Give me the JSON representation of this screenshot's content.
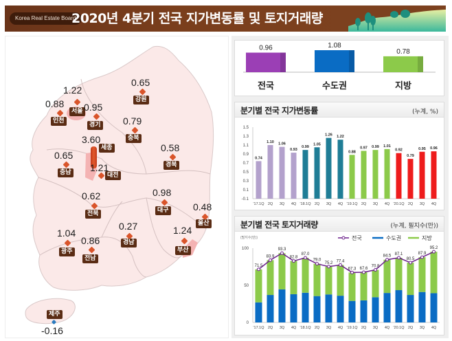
{
  "header": {
    "brand": "Korea Real Estate Board",
    "title": "2020년 4분기 전국 지가변동률 및 토지거래량"
  },
  "colors": {
    "banner": "#7a3e1c",
    "national": "#9b3fb5",
    "capital": "#0a6cc4",
    "provincial": "#8cca4a",
    "year2017": "#b3a1cc",
    "year2018": "#1f7d96",
    "year2019": "#8cca4a",
    "year2020": "#ee1c1c",
    "line": "#6a1f8a",
    "map_fill": "#fbe9e8",
    "label_bg": "#5a2c14"
  },
  "map": {
    "regions": [
      {
        "name": "서울",
        "value": "1.22"
      },
      {
        "name": "인천",
        "value": "0.88"
      },
      {
        "name": "경기",
        "value": "0.95"
      },
      {
        "name": "강원",
        "value": "0.65"
      },
      {
        "name": "충북",
        "value": "0.79"
      },
      {
        "name": "세종",
        "value": "3.60"
      },
      {
        "name": "충남",
        "value": "0.65"
      },
      {
        "name": "대전",
        "value": "1.21"
      },
      {
        "name": "경북",
        "value": "0.58"
      },
      {
        "name": "전북",
        "value": "0.62"
      },
      {
        "name": "대구",
        "value": "0.98"
      },
      {
        "name": "울산",
        "value": "0.48"
      },
      {
        "name": "광주",
        "value": "1.04"
      },
      {
        "name": "전남",
        "value": "0.86"
      },
      {
        "name": "경남",
        "value": "0.27"
      },
      {
        "name": "부산",
        "value": "1.24"
      },
      {
        "name": "제주",
        "value": "-0.16"
      }
    ]
  },
  "chart_data": [
    {
      "type": "bar",
      "title": "",
      "categories": [
        "전국",
        "수도권",
        "지방"
      ],
      "values": [
        0.96,
        1.08,
        0.78
      ],
      "value_labels": [
        "0.96",
        "1.08",
        "0.78"
      ],
      "xlabel": "",
      "ylabel": "",
      "ylim": [
        0,
        1.2
      ],
      "grid": false
    },
    {
      "type": "bar",
      "title": "분기별 전국 지가변동률",
      "unit": "(누계, %)",
      "categories": [
        "'17.1Q",
        "2Q",
        "3Q",
        "4Q",
        "'18.1Q",
        "2Q",
        "3Q",
        "4Q",
        "'19.1Q",
        "2Q",
        "3Q",
        "4Q",
        "'20.1Q",
        "2Q",
        "3Q",
        "4Q"
      ],
      "values": [
        0.74,
        1.1,
        1.06,
        0.93,
        0.99,
        1.05,
        1.26,
        1.22,
        0.88,
        0.97,
        0.99,
        1.01,
        0.92,
        0.79,
        0.95,
        0.96
      ],
      "value_labels": [
        "0.74",
        "1.10",
        "1.06",
        "0.93",
        "0.99",
        "1.05",
        "1.26",
        "1.22",
        "0.88",
        "0.97",
        "0.99",
        "1.01",
        "0.92",
        "0.79",
        "0.95",
        "0.96"
      ],
      "year_groups": [
        "2017",
        "2017",
        "2017",
        "2017",
        "2018",
        "2018",
        "2018",
        "2018",
        "2019",
        "2019",
        "2019",
        "2019",
        "2020",
        "2020",
        "2020",
        "2020"
      ],
      "yticks": [
        "1.5",
        "1.3",
        "1.1",
        "0.9",
        "0.7",
        "0.5",
        "0.3",
        "0.1",
        "-0.1"
      ],
      "ylim": [
        -0.1,
        1.5
      ],
      "xlabel": "",
      "ylabel": "",
      "grid": false
    },
    {
      "type": "bar",
      "stacked": true,
      "title": "분기별 전국 토지거래량",
      "unit": "(누계, 필지수(만))",
      "ylabel": "(필지수(만))",
      "xlabel": "",
      "categories": [
        "'17.1Q",
        "2Q",
        "3Q",
        "4Q",
        "'18.1Q",
        "2Q",
        "3Q",
        "4Q",
        "'19.1Q",
        "2Q",
        "3Q",
        "4Q",
        "'20.1Q",
        "2Q",
        "3Q",
        "4Q"
      ],
      "legend": [
        "전국",
        "수도권",
        "지방"
      ],
      "legend_position": "top-right",
      "series": [
        {
          "name": "수도권",
          "kind": "bar",
          "values": [
            27,
            37,
            44.5,
            38,
            40,
            35.5,
            37.7,
            36,
            29,
            29.7,
            34,
            39.7,
            43.5,
            37,
            41,
            39.4
          ]
        },
        {
          "name": "지방",
          "kind": "bar",
          "values": [
            44.5,
            46.9,
            48.8,
            44.8,
            47,
            43.5,
            37.5,
            41.4,
            38.3,
            37.9,
            36.8,
            44.8,
            43.6,
            43.5,
            46.9,
            55.8
          ]
        },
        {
          "name": "전국",
          "kind": "line",
          "values": [
            71.5,
            83.9,
            93.3,
            82.8,
            87.0,
            79.0,
            75.2,
            77.4,
            67.3,
            67.6,
            70.8,
            84.5,
            87.1,
            80.5,
            87.9,
            95.2
          ]
        }
      ],
      "value_labels": [
        "71.5",
        "83.9",
        "93.3",
        "82.8",
        "87.0",
        "79.0",
        "75.2",
        "77.4",
        "67.3",
        "67.6",
        "70.8",
        "84.5",
        "87.1",
        "80.5",
        "87.9",
        "95.2"
      ],
      "yticks": [
        "100",
        "50",
        "0"
      ],
      "ylim": [
        0,
        100
      ],
      "grid": false
    }
  ]
}
